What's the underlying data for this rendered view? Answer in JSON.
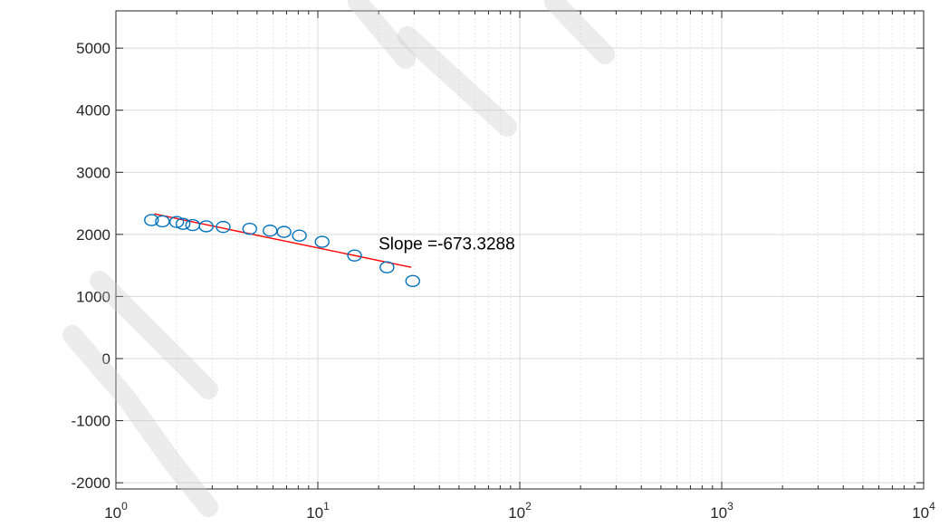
{
  "chart_data": {
    "type": "scatter",
    "x_scale": "log",
    "xlim": [
      1,
      10000
    ],
    "ylim": [
      -2100,
      5600
    ],
    "x_ticks": [
      {
        "value": 1,
        "base": "10",
        "exp": "0"
      },
      {
        "value": 10,
        "base": "10",
        "exp": "1"
      },
      {
        "value": 100,
        "base": "10",
        "exp": "2"
      },
      {
        "value": 1000,
        "base": "10",
        "exp": "3"
      },
      {
        "value": 10000,
        "base": "10",
        "exp": "4"
      }
    ],
    "y_ticks": [
      {
        "value": 5000,
        "label": "5000"
      },
      {
        "value": 4000,
        "label": "4000"
      },
      {
        "value": 3000,
        "label": "3000"
      },
      {
        "value": 2000,
        "label": "2000"
      },
      {
        "value": 1000,
        "label": "1000"
      },
      {
        "value": 0,
        "label": "0"
      },
      {
        "value": -1000,
        "label": "-1000"
      },
      {
        "value": -2000,
        "label": "-2000"
      }
    ],
    "grid": true,
    "minor_grid": true,
    "series": [
      {
        "marker": "circle",
        "color": "#0072BD",
        "x": [
          1.5,
          1.7,
          2.0,
          2.15,
          2.4,
          2.8,
          3.4,
          4.6,
          5.8,
          6.8,
          8.1,
          10.5,
          15.2,
          22,
          29.5
        ],
        "y": [
          2230,
          2210,
          2200,
          2170,
          2150,
          2130,
          2120,
          2090,
          2060,
          2040,
          1980,
          1880,
          1660,
          1470,
          1250
        ]
      }
    ],
    "fit_line": {
      "color": "#FF0000",
      "x": [
        1.55,
        29
      ],
      "y": [
        2330,
        1470
      ]
    },
    "annotation": {
      "text": "Slope =-673.3288",
      "x": 20,
      "y": 1760
    }
  },
  "colors": {
    "axes": "#262626",
    "grid_major": "#d9d9d9",
    "grid_minor": "#e3e3e3",
    "marker": "#0072BD",
    "fit": "#FF0000"
  }
}
